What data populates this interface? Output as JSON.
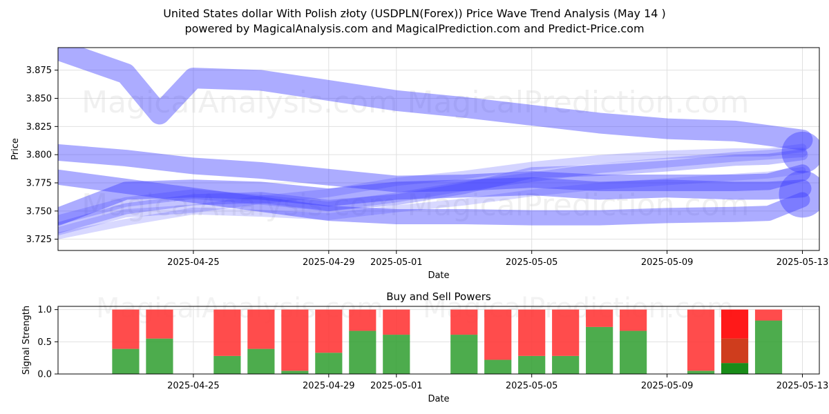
{
  "header": {
    "title_line1": "United States dollar With Polish złoty (USDPLN(Forex)) Price Wave Trend Analysis (May 14 )",
    "title_line2": "powered by MagicalAnalysis.com and MagicalPrediction.com and Predict-Price.com"
  },
  "watermarks": [
    "MagicalAnalysis.com",
    "MagicalPrediction.com"
  ],
  "colors": {
    "wave": "#3a3aff",
    "buy": "#2e9e2e",
    "sell": "#ff3333",
    "buy_strong": "#008000",
    "sell_strong": "#ff0000",
    "mixed": "#cc3311",
    "grid": "#e0e0e0"
  },
  "chart_data": [
    {
      "type": "line",
      "title": "",
      "xlabel": "Date",
      "ylabel": "Price",
      "grid": true,
      "xlim": [
        "2025-04-21",
        "2025-05-13.5"
      ],
      "ylim": [
        3.715,
        3.895
      ],
      "x_ticks": [
        "2025-04-25",
        "2025-04-29",
        "2025-05-01",
        "2025-05-05",
        "2025-05-09",
        "2025-05-13"
      ],
      "y_ticks": [
        3.725,
        3.75,
        3.775,
        3.8,
        3.825,
        3.85,
        3.875
      ],
      "y_tick_labels": [
        "3.725",
        "3.750",
        "3.775",
        "3.800",
        "3.825",
        "3.850",
        "3.875"
      ],
      "series": [
        {
          "x": [
            "2025-04-21",
            "2025-04-23",
            "2025-04-24",
            "2025-04-25",
            "2025-04-27",
            "2025-04-29",
            "2025-05-01",
            "2025-05-03",
            "2025-05-05",
            "2025-05-07",
            "2025-05-09",
            "2025-05-11",
            "2025-05-13"
          ],
          "values": [
            3.893,
            3.872,
            3.836,
            3.868,
            3.866,
            3.857,
            3.848,
            3.842,
            3.835,
            3.828,
            3.823,
            3.821,
            3.813
          ],
          "width": 30,
          "opacity": 0.42
        },
        {
          "x": [
            "2025-04-21",
            "2025-04-23",
            "2025-04-25",
            "2025-04-27",
            "2025-04-29",
            "2025-05-01",
            "2025-05-03",
            "2025-05-05",
            "2025-05-07",
            "2025-05-09",
            "2025-05-11",
            "2025-05-12",
            "2025-05-13"
          ],
          "values": [
            3.802,
            3.797,
            3.79,
            3.786,
            3.78,
            3.774,
            3.775,
            3.778,
            3.775,
            3.775,
            3.775,
            3.776,
            3.784
          ],
          "width": 24,
          "opacity": 0.42
        },
        {
          "x": [
            "2025-04-21",
            "2025-04-23",
            "2025-04-25",
            "2025-04-27",
            "2025-04-29",
            "2025-05-01",
            "2025-05-03",
            "2025-05-05",
            "2025-05-07",
            "2025-05-09",
            "2025-05-11",
            "2025-05-12",
            "2025-05-13"
          ],
          "values": [
            3.78,
            3.772,
            3.764,
            3.756,
            3.748,
            3.745,
            3.745,
            3.744,
            3.744,
            3.746,
            3.747,
            3.748,
            3.76
          ],
          "width": 22,
          "opacity": 0.42
        },
        {
          "x": [
            "2025-04-21",
            "2025-04-23",
            "2025-04-25",
            "2025-04-27",
            "2025-04-29",
            "2025-05-01",
            "2025-05-03",
            "2025-05-05",
            "2025-05-07",
            "2025-05-09",
            "2025-05-11",
            "2025-05-12",
            "2025-05-13"
          ],
          "values": [
            3.745,
            3.768,
            3.77,
            3.768,
            3.762,
            3.768,
            3.77,
            3.772,
            3.768,
            3.77,
            3.768,
            3.768,
            3.77
          ],
          "width": 26,
          "opacity": 0.42
        },
        {
          "x": [
            "2025-04-21",
            "2025-04-23",
            "2025-04-25",
            "2025-04-27",
            "2025-04-29",
            "2025-05-01",
            "2025-05-03",
            "2025-05-05",
            "2025-05-07",
            "2025-05-09",
            "2025-05-11",
            "2025-05-12",
            "2025-05-13"
          ],
          "values": [
            3.735,
            3.752,
            3.76,
            3.762,
            3.755,
            3.76,
            3.77,
            3.784,
            3.786,
            3.79,
            3.795,
            3.796,
            3.8
          ],
          "width": 16,
          "opacity": 0.3
        },
        {
          "x": [
            "2025-04-21",
            "2025-04-23",
            "2025-04-25",
            "2025-04-27",
            "2025-04-29",
            "2025-05-01",
            "2025-05-03",
            "2025-05-05",
            "2025-05-07",
            "2025-05-09",
            "2025-05-11",
            "2025-05-12",
            "2025-05-13"
          ],
          "values": [
            3.742,
            3.758,
            3.765,
            3.76,
            3.754,
            3.762,
            3.772,
            3.78,
            3.788,
            3.793,
            3.798,
            3.8,
            3.802
          ],
          "width": 14,
          "opacity": 0.25
        },
        {
          "x": [
            "2025-04-21",
            "2025-04-23",
            "2025-04-25",
            "2025-04-27",
            "2025-04-29",
            "2025-05-01",
            "2025-05-03",
            "2025-05-05",
            "2025-05-07",
            "2025-05-09",
            "2025-05-11",
            "2025-05-12",
            "2025-05-13"
          ],
          "values": [
            3.732,
            3.748,
            3.752,
            3.76,
            3.766,
            3.776,
            3.782,
            3.79,
            3.796,
            3.8,
            3.802,
            3.802,
            3.806
          ],
          "width": 12,
          "opacity": 0.22
        },
        {
          "x": [
            "2025-04-21",
            "2025-04-23",
            "2025-04-25",
            "2025-04-27",
            "2025-04-29",
            "2025-05-01",
            "2025-05-03",
            "2025-05-05",
            "2025-05-07",
            "2025-05-09",
            "2025-05-11",
            "2025-05-12",
            "2025-05-13"
          ],
          "values": [
            3.728,
            3.74,
            3.75,
            3.748,
            3.745,
            3.752,
            3.758,
            3.766,
            3.772,
            3.776,
            3.78,
            3.782,
            3.786
          ],
          "width": 10,
          "opacity": 0.2
        }
      ],
      "end_markers": [
        {
          "x": "2025-05-13",
          "y": 3.802,
          "r": 30
        },
        {
          "x": "2025-05-13",
          "y": 3.765,
          "r": 34
        }
      ]
    },
    {
      "type": "bar",
      "title": "Buy and Sell Powers",
      "xlabel": "Date",
      "ylabel": "Signal Strength",
      "grid": true,
      "xlim": [
        "2025-04-21",
        "2025-05-13.5"
      ],
      "ylim": [
        0,
        1.05
      ],
      "x_ticks": [
        "2025-04-25",
        "2025-04-29",
        "2025-05-01",
        "2025-05-05",
        "2025-05-09",
        "2025-05-13"
      ],
      "y_ticks": [
        0.0,
        0.5,
        1.0
      ],
      "y_tick_labels": [
        "0.0",
        "0.5",
        "1.0"
      ],
      "categories": [
        "2025-04-23",
        "2025-04-24",
        "2025-04-26",
        "2025-04-27",
        "2025-04-28",
        "2025-04-29",
        "2025-04-30",
        "2025-05-01",
        "2025-05-03",
        "2025-05-04",
        "2025-05-05",
        "2025-05-06",
        "2025-05-07",
        "2025-05-08",
        "2025-05-10",
        "2025-05-11",
        "2025-05-12"
      ],
      "series": [
        {
          "name": "buy",
          "values": [
            0.39,
            0.55,
            0.28,
            0.39,
            0.05,
            0.33,
            0.67,
            0.61,
            0.61,
            0.22,
            0.28,
            0.28,
            0.73,
            0.67,
            0.05,
            0.17,
            0.83
          ]
        },
        {
          "name": "sell",
          "values": [
            0.61,
            0.45,
            0.72,
            0.61,
            0.95,
            0.67,
            0.33,
            0.39,
            0.39,
            0.78,
            0.72,
            0.72,
            0.27,
            0.33,
            0.95,
            0.83,
            0.17
          ]
        }
      ],
      "highlight_bar": {
        "category": "2025-05-11",
        "mixed_top": 0.55
      }
    }
  ]
}
